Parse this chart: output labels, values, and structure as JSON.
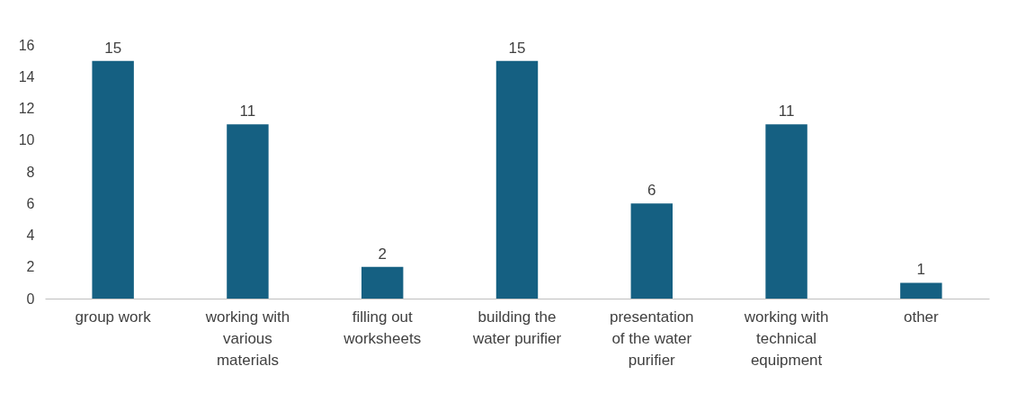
{
  "chart_data": {
    "type": "bar",
    "categories": [
      "group work",
      "working with various materials",
      "filling out worksheets",
      "building the water purifier",
      "presentation of the water purifier",
      "working with technical equipment",
      "other"
    ],
    "values": [
      15,
      11,
      2,
      15,
      6,
      11,
      1
    ],
    "color": "#156082",
    "ylim": [
      0,
      16
    ],
    "yticks": [
      0,
      2,
      4,
      6,
      8,
      10,
      12,
      14,
      16
    ],
    "grid": false,
    "data_labels": true
  }
}
